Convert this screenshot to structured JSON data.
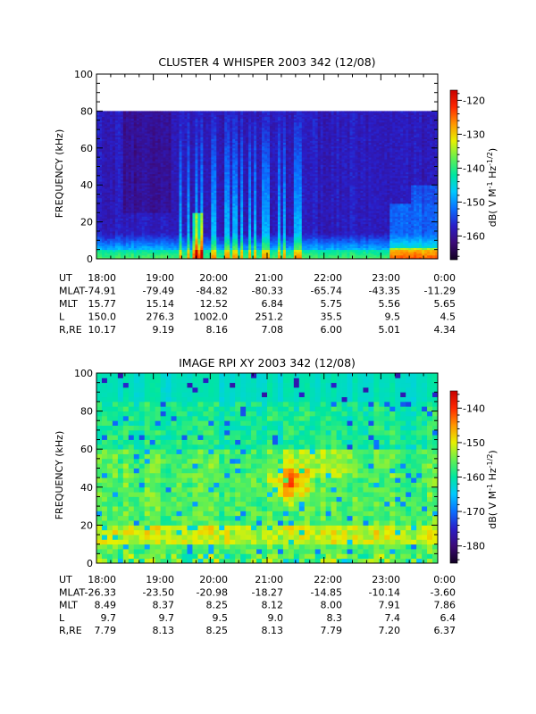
{
  "chart_data": [
    {
      "type": "heatmap",
      "title": "CLUSTER 4 WHISPER 2003 342 (12/08)",
      "ylabel": "FREQUENCY (kHz)",
      "ylim": [
        0,
        100
      ],
      "yticks": [
        "0",
        "20",
        "40",
        "60",
        "80",
        "100"
      ],
      "data_ylim": [
        0,
        80
      ],
      "colorbar": {
        "label": "dB( V M^-1 Hz^-1/2 )",
        "range": [
          -167,
          -117
        ],
        "ticks": [
          "-160",
          "-150",
          "-140",
          "-130",
          "-120"
        ]
      },
      "colormap": [
        "#110022",
        "#3c0a78",
        "#2a1ec8",
        "#0a6eff",
        "#00c8ff",
        "#00e6a0",
        "#64f050",
        "#e6f000",
        "#ff9600",
        "#ff2800",
        "#c80000"
      ],
      "dominant": "dark blue/purple background near -160 dB with brighter cyan and green emission below ~10 kHz and vertical streaks between 19:30 and 21:30 UT",
      "xticks": [
        "18:00",
        "19:00",
        "20:00",
        "21:00",
        "22:00",
        "23:00",
        "0:00"
      ],
      "ephemeris": [
        {
          "name": "UT",
          "values": [
            "18:00",
            "19:00",
            "20:00",
            "21:00",
            "22:00",
            "23:00",
            "0:00"
          ]
        },
        {
          "name": "MLAT",
          "values": [
            "-74.91",
            "-79.49",
            "-84.82",
            "-80.33",
            "-65.74",
            "-43.35",
            "-11.29"
          ]
        },
        {
          "name": "MLT",
          "values": [
            "15.77",
            "15.14",
            "12.52",
            "6.84",
            "5.75",
            "5.56",
            "5.65"
          ]
        },
        {
          "name": "L",
          "values": [
            "150.0",
            "276.3",
            "1002.0",
            "251.2",
            "35.5",
            "9.5",
            "4.5"
          ]
        },
        {
          "name": "R,RE",
          "values": [
            "10.17",
            "9.19",
            "8.16",
            "7.08",
            "6.00",
            "5.01",
            "4.34"
          ]
        }
      ]
    },
    {
      "type": "heatmap",
      "title": "IMAGE RPI XY 2003 342 (12/08)",
      "ylabel": "FREQUENCY (kHz)",
      "ylim": [
        0,
        100
      ],
      "yticks": [
        "0",
        "20",
        "40",
        "60",
        "80",
        "100"
      ],
      "data_ylim": [
        0,
        100
      ],
      "colorbar": {
        "label": "dB( V M^-1 Hz^-1/2 )",
        "range": [
          -185,
          -135
        ],
        "ticks": [
          "-180",
          "-170",
          "-160",
          "-150",
          "-140"
        ]
      },
      "colormap": [
        "#110022",
        "#3c0a78",
        "#2a1ec8",
        "#0a6eff",
        "#00c8ff",
        "#00e6a0",
        "#64f050",
        "#e6f000",
        "#ff9600",
        "#ff2800",
        "#c80000"
      ],
      "dominant": "green/cyan background near -155 dB with a red/orange hotspot near 40 kHz around 21:30 UT and bright band near 15 kHz",
      "xticks": [
        "18:00",
        "19:00",
        "20:00",
        "21:00",
        "22:00",
        "23:00",
        "0:00"
      ],
      "ephemeris": [
        {
          "name": "UT",
          "values": [
            "18:00",
            "19:00",
            "20:00",
            "21:00",
            "22:00",
            "23:00",
            "0:00"
          ]
        },
        {
          "name": "MLAT",
          "values": [
            "-26.33",
            "-23.50",
            "-20.98",
            "-18.27",
            "-14.85",
            "-10.14",
            "-3.60"
          ]
        },
        {
          "name": "MLT",
          "values": [
            "8.49",
            "8.37",
            "8.25",
            "8.12",
            "8.00",
            "7.91",
            "7.86"
          ]
        },
        {
          "name": "L",
          "values": [
            "9.7",
            "9.7",
            "9.5",
            "9.0",
            "8.3",
            "7.4",
            "6.4"
          ]
        },
        {
          "name": "R,RE",
          "values": [
            "7.79",
            "8.13",
            "8.25",
            "8.13",
            "7.79",
            "7.20",
            "6.37"
          ]
        }
      ]
    }
  ]
}
